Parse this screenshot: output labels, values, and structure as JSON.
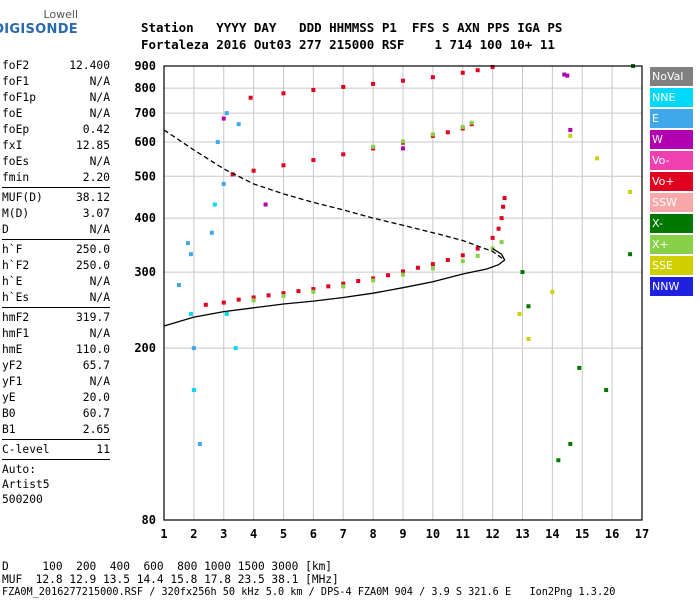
{
  "logo": {
    "line1": "Lowell",
    "line2": "DIGISONDE"
  },
  "header": {
    "line1": "Station   YYYY DAY   DDD HHMMSS P1  FFS S AXN PPS IGA PS",
    "line2": "Fortaleza 2016 Out03 277 215000 RSF    1 714 100 10+ 11"
  },
  "params": [
    {
      "name": "foF2",
      "value": "12.400"
    },
    {
      "name": "foF1",
      "value": "N/A"
    },
    {
      "name": "foF1p",
      "value": "N/A"
    },
    {
      "name": "foE",
      "value": "N/A"
    },
    {
      "name": "foEp",
      "value": "0.42"
    },
    {
      "name": "fxI",
      "value": "12.85"
    },
    {
      "name": "foEs",
      "value": "N/A"
    },
    {
      "name": "fmin",
      "value": "2.20"
    },
    {
      "sep": true
    },
    {
      "name": "MUF(D)",
      "value": "38.12"
    },
    {
      "name": "M(D)",
      "value": "3.07"
    },
    {
      "name": "D",
      "value": "N/A"
    },
    {
      "sep": true
    },
    {
      "name": "h`F",
      "value": "250.0"
    },
    {
      "name": "h`F2",
      "value": "250.0"
    },
    {
      "name": "h`E",
      "value": "N/A"
    },
    {
      "name": "h`Es",
      "value": "N/A"
    },
    {
      "sep": true
    },
    {
      "name": "hmF2",
      "value": "319.7"
    },
    {
      "name": "hmF1",
      "value": "N/A"
    },
    {
      "name": "hmE",
      "value": "110.0"
    },
    {
      "name": "yF2",
      "value": "65.7"
    },
    {
      "name": "yF1",
      "value": "N/A"
    },
    {
      "name": "yE",
      "value": "20.0"
    },
    {
      "name": "B0",
      "value": "60.7"
    },
    {
      "name": "B1",
      "value": "2.65"
    },
    {
      "sep": true
    },
    {
      "name": "C-level",
      "value": "11"
    },
    {
      "sep": true
    },
    {
      "text": "Auto:"
    },
    {
      "text": "Artist5"
    },
    {
      "text": "500200"
    }
  ],
  "footer": {
    "line1": "D     100  200  400  600  800 1000 1500 3000 [km]",
    "line2": "MUF  12.8 12.9 13.5 14.4 15.8 17.8 23.5 38.1 [MHz]",
    "line3": "FZA0M_2016277215000.RSF / 320fx256h 50 kHz 5.0 km / DPS-4 FZA0M 904 / 3.9 S 321.6 E   Ion2Png 1.3.20"
  },
  "legend": [
    {
      "label": "NoVal",
      "color": "#808080"
    },
    {
      "label": "NNE",
      "color": "#00d8f8"
    },
    {
      "label": "E",
      "color": "#40a8e8"
    },
    {
      "label": "W",
      "color": "#b000b0"
    },
    {
      "label": "Vo-",
      "color": "#f040b0"
    },
    {
      "label": "Vo+",
      "color": "#e00020"
    },
    {
      "label": "SSW",
      "color": "#f8a8a8"
    },
    {
      "label": "X-",
      "color": "#007800"
    },
    {
      "label": "X+",
      "color": "#88d048"
    },
    {
      "label": "SSE",
      "color": "#d0d000"
    },
    {
      "label": "NNW",
      "color": "#2020e0"
    }
  ],
  "chart_data": {
    "type": "scatter",
    "x_ticks": [
      1,
      2,
      3,
      4,
      5,
      6,
      7,
      8,
      9,
      10,
      11,
      12,
      13,
      14,
      15,
      16,
      17
    ],
    "y_ticks": [
      80,
      200,
      300,
      400,
      500,
      600,
      700,
      800,
      900
    ],
    "xlim": [
      1,
      17
    ],
    "ylim": [
      80,
      900
    ],
    "grid": true,
    "legend_position": "right",
    "series": [
      {
        "name": "Vo+",
        "color": "#e00020",
        "mode": "markers",
        "x": [
          2.4,
          3.0,
          3.5,
          4.0,
          4.5,
          5.0,
          5.5,
          6.0,
          6.5,
          7.0,
          7.5,
          8.0,
          8.5,
          9.0,
          9.5,
          10.0,
          10.5,
          11.0,
          11.5,
          12.0,
          12.2,
          12.3,
          12.35,
          12.4
        ],
        "y": [
          252,
          255,
          259,
          262,
          265,
          268,
          271,
          274,
          278,
          282,
          286,
          290,
          295,
          301,
          307,
          313,
          320,
          328,
          340,
          360,
          378,
          400,
          425,
          445
        ]
      },
      {
        "name": "X+",
        "color": "#88d048",
        "mode": "markers",
        "x": [
          4.0,
          5.0,
          6.0,
          7.0,
          8.0,
          9.0,
          10.0,
          11.0,
          11.5,
          12.0,
          12.3
        ],
        "y": [
          258,
          264,
          270,
          278,
          287,
          296,
          306,
          318,
          327,
          340,
          352
        ]
      },
      {
        "name": "Vo+",
        "color": "#e00020",
        "mode": "markers",
        "x": [
          3.3,
          4.0,
          5.0,
          6.0,
          7.0,
          8.0,
          9.0,
          10.0,
          10.5,
          11.0,
          11.3
        ],
        "y": [
          505,
          515,
          530,
          545,
          562,
          580,
          598,
          620,
          632,
          645,
          660
        ]
      },
      {
        "name": "X+",
        "color": "#88d048",
        "mode": "markers",
        "x": [
          8.0,
          9.0,
          10.0,
          11.0,
          11.3
        ],
        "y": [
          585,
          602,
          625,
          650,
          665
        ]
      },
      {
        "name": "Vo+",
        "color": "#e00020",
        "mode": "markers",
        "x": [
          3.9,
          5.0,
          6.0,
          7.0,
          8.0,
          9.0,
          10.0,
          11.0,
          11.5,
          12.0
        ],
        "y": [
          760,
          778,
          792,
          805,
          818,
          832,
          848,
          868,
          880,
          895
        ]
      },
      {
        "name": "profile",
        "color": "#000000",
        "mode": "line",
        "x": [
          1.0,
          2.0,
          3.0,
          4.0,
          5.0,
          6.0,
          7.0,
          8.0,
          9.0,
          10.0,
          11.0,
          11.8,
          12.2,
          12.4,
          12.3,
          12.0
        ],
        "y": [
          225,
          236,
          243,
          248,
          253,
          257,
          262,
          268,
          276,
          285,
          297,
          305,
          312,
          320,
          330,
          340
        ]
      },
      {
        "name": "profile-dashed",
        "color": "#000000",
        "mode": "dashed",
        "x": [
          1.0,
          2.0,
          3.0,
          4.0,
          5.0,
          6.0,
          7.0,
          8.0,
          9.0,
          10.0,
          11.0,
          12.0,
          12.4
        ],
        "y": [
          640,
          575,
          520,
          480,
          455,
          435,
          418,
          400,
          385,
          370,
          355,
          335,
          320
        ]
      },
      {
        "name": "W",
        "color": "#b000b0",
        "mode": "markers",
        "x": [
          3.0,
          4.4,
          14.4,
          14.5,
          14.6,
          9.0
        ],
        "y": [
          680,
          430,
          860,
          855,
          640,
          580
        ]
      },
      {
        "name": "E",
        "color": "#40a8e8",
        "mode": "markers",
        "x": [
          1.8,
          1.9,
          2.6,
          2.8,
          3.1,
          3.5,
          3.0,
          1.5,
          2.0,
          2.2
        ],
        "y": [
          350,
          330,
          370,
          600,
          700,
          660,
          480,
          280,
          200,
          120
        ]
      },
      {
        "name": "NNE",
        "color": "#00d8f8",
        "mode": "markers",
        "x": [
          1.9,
          2.7,
          3.1,
          3.4,
          2.0
        ],
        "y": [
          240,
          430,
          240,
          200,
          160
        ]
      },
      {
        "name": "X-",
        "color": "#007800",
        "mode": "markers",
        "x": [
          13.0,
          13.2,
          14.6,
          15.8,
          16.6,
          16.7,
          14.2,
          14.9
        ],
        "y": [
          300,
          250,
          120,
          160,
          330,
          900,
          110,
          180
        ]
      },
      {
        "name": "SSE",
        "color": "#d0d000",
        "mode": "markers",
        "x": [
          13.2,
          14.0,
          14.6,
          16.6,
          15.5,
          12.9
        ],
        "y": [
          210,
          270,
          620,
          460,
          550,
          240
        ]
      }
    ]
  }
}
